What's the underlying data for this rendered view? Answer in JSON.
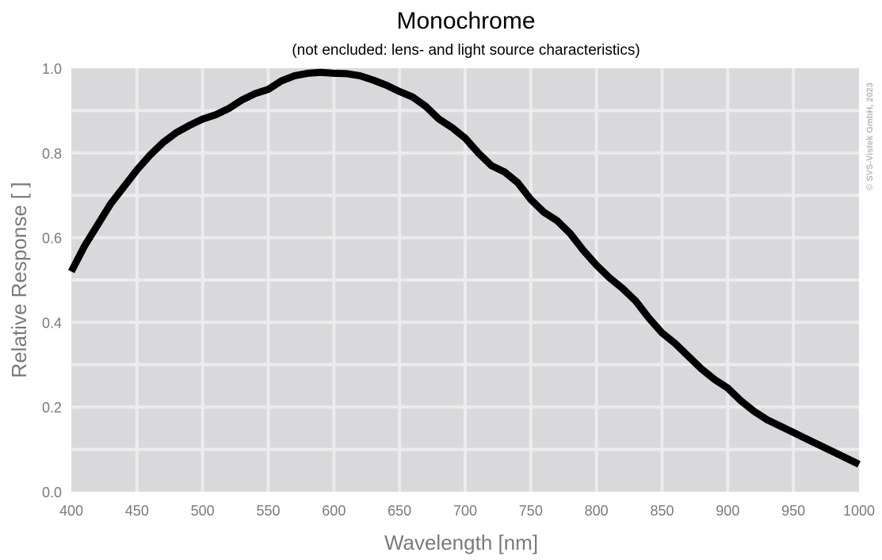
{
  "chart_data": {
    "type": "line",
    "title": "Monochrome",
    "subtitle": "(not encluded: lens- and light source characteristics)",
    "xlabel": "Wavelength [nm]",
    "ylabel": "Relative Response [ ]",
    "xlim": [
      400,
      1000
    ],
    "ylim": [
      0.0,
      1.0
    ],
    "x_ticks": [
      "400",
      "450",
      "500",
      "550",
      "600",
      "650",
      "700",
      "750",
      "800",
      "850",
      "900",
      "950",
      "1000"
    ],
    "y_ticks": [
      "0.0",
      "0.2",
      "0.4",
      "0.6",
      "0.8",
      "1.0"
    ],
    "grid": true,
    "background_color": "#d9d9db",
    "grid_color": "#ececec",
    "line_color": "#000000",
    "copyright": "© SVS-Vistek GmbH, 2023",
    "series": [
      {
        "x": [
          400,
          410,
          420,
          430,
          440,
          450,
          460,
          470,
          480,
          490,
          500,
          510,
          520,
          530,
          540,
          550,
          560,
          570,
          580,
          590,
          600,
          610,
          620,
          630,
          640,
          650,
          660,
          670,
          680,
          690,
          700,
          710,
          720,
          730,
          740,
          750,
          760,
          770,
          780,
          790,
          800,
          810,
          820,
          830,
          840,
          850,
          860,
          870,
          880,
          890,
          900,
          910,
          920,
          930,
          940,
          950,
          960,
          970,
          980,
          990,
          1000
        ],
        "y": [
          0.52,
          0.58,
          0.63,
          0.68,
          0.72,
          0.76,
          0.795,
          0.825,
          0.848,
          0.865,
          0.88,
          0.89,
          0.905,
          0.925,
          0.94,
          0.95,
          0.97,
          0.982,
          0.988,
          0.99,
          0.988,
          0.987,
          0.982,
          0.972,
          0.96,
          0.945,
          0.932,
          0.91,
          0.88,
          0.86,
          0.835,
          0.8,
          0.77,
          0.755,
          0.73,
          0.69,
          0.66,
          0.64,
          0.61,
          0.57,
          0.535,
          0.505,
          0.48,
          0.45,
          0.41,
          0.375,
          0.35,
          0.32,
          0.29,
          0.265,
          0.245,
          0.215,
          0.19,
          0.17,
          0.155,
          0.14,
          0.125,
          0.11,
          0.095,
          0.08,
          0.065
        ]
      }
    ]
  }
}
